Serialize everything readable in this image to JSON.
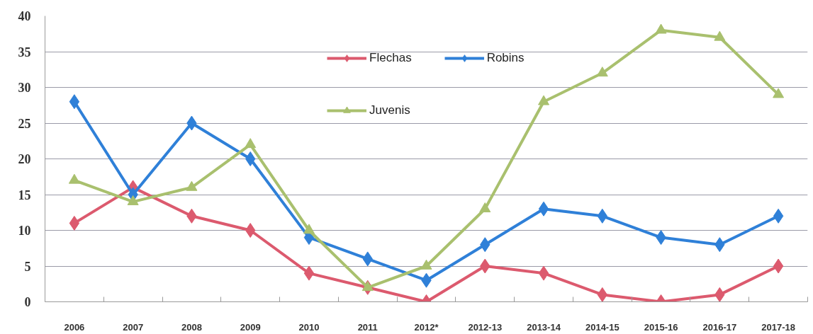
{
  "chart_data": {
    "type": "line",
    "categories": [
      "2006",
      "2007",
      "2008",
      "2009",
      "2010",
      "2011",
      "2012*",
      "2012-13",
      "2013-14",
      "2014-15",
      "2015-16",
      "2016-17",
      "2017-18"
    ],
    "ylim": [
      0,
      40
    ],
    "yticks": [
      0,
      5,
      10,
      15,
      20,
      25,
      30,
      35,
      40
    ],
    "grid": "y",
    "legend": "top",
    "series": [
      {
        "name": "Flechas",
        "color": "#dc5a6e",
        "marker": "diamond",
        "values": [
          11,
          16,
          12,
          10,
          4,
          2,
          0,
          5,
          4,
          1,
          0,
          1,
          5
        ]
      },
      {
        "name": "Robins",
        "color": "#2f80d8",
        "marker": "diamond",
        "values": [
          28,
          15,
          25,
          20,
          9,
          6,
          3,
          8,
          13,
          12,
          9,
          8,
          12
        ]
      },
      {
        "name": "Juvenis",
        "color": "#a9c06e",
        "marker": "triangle",
        "values": [
          17,
          14,
          16,
          22,
          10,
          2,
          5,
          13,
          28,
          32,
          38,
          37,
          29
        ]
      }
    ]
  }
}
